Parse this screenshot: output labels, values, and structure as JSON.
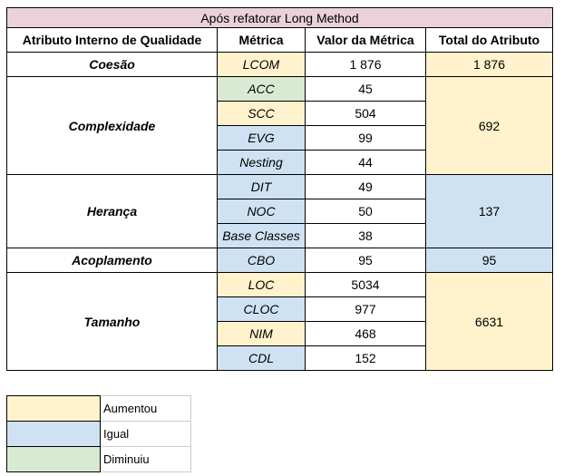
{
  "title": "Após refatorar Long Method",
  "headers": {
    "attribute": "Atributo Interno de Qualidade",
    "metric": "Métrica",
    "value": "Valor da Métrica",
    "total": "Total do Atributo"
  },
  "groups": [
    {
      "attribute": "Coesão",
      "total": "1 876",
      "metrics": [
        {
          "name": "LCOM",
          "value": "1 876",
          "status": "aumentou"
        }
      ]
    },
    {
      "attribute": "Complexidade",
      "total": "692",
      "metrics": [
        {
          "name": "ACC",
          "value": "45",
          "status": "diminuiu"
        },
        {
          "name": "SCC",
          "value": "504",
          "status": "aumentou"
        },
        {
          "name": "EVG",
          "value": "99",
          "status": "igual"
        },
        {
          "name": "Nesting",
          "value": "44",
          "status": "igual"
        }
      ]
    },
    {
      "attribute": "Herança",
      "total": "137",
      "metrics": [
        {
          "name": "DIT",
          "value": "49",
          "status": "igual"
        },
        {
          "name": "NOC",
          "value": "50",
          "status": "igual"
        },
        {
          "name": "Base Classes",
          "value": "38",
          "status": "igual"
        }
      ]
    },
    {
      "attribute": "Acoplamento",
      "total": "95",
      "metrics": [
        {
          "name": "CBO",
          "value": "95",
          "status": "igual"
        }
      ]
    },
    {
      "attribute": "Tamanho",
      "total": "6631",
      "metrics": [
        {
          "name": "LOC",
          "value": "5034",
          "status": "aumentou"
        },
        {
          "name": "CLOC",
          "value": "977",
          "status": "igual"
        },
        {
          "name": "NIM",
          "value": "468",
          "status": "aumentou"
        },
        {
          "name": "CDL",
          "value": "152",
          "status": "igual"
        }
      ]
    }
  ],
  "legend": {
    "aumentou": "Aumentou",
    "igual": "Igual",
    "diminuiu": "Diminuiu"
  },
  "colors": {
    "title_bg": "#ead1dc",
    "aumentou": "#fff2cc",
    "igual": "#cfe2f3",
    "diminuiu": "#d9ead3"
  }
}
